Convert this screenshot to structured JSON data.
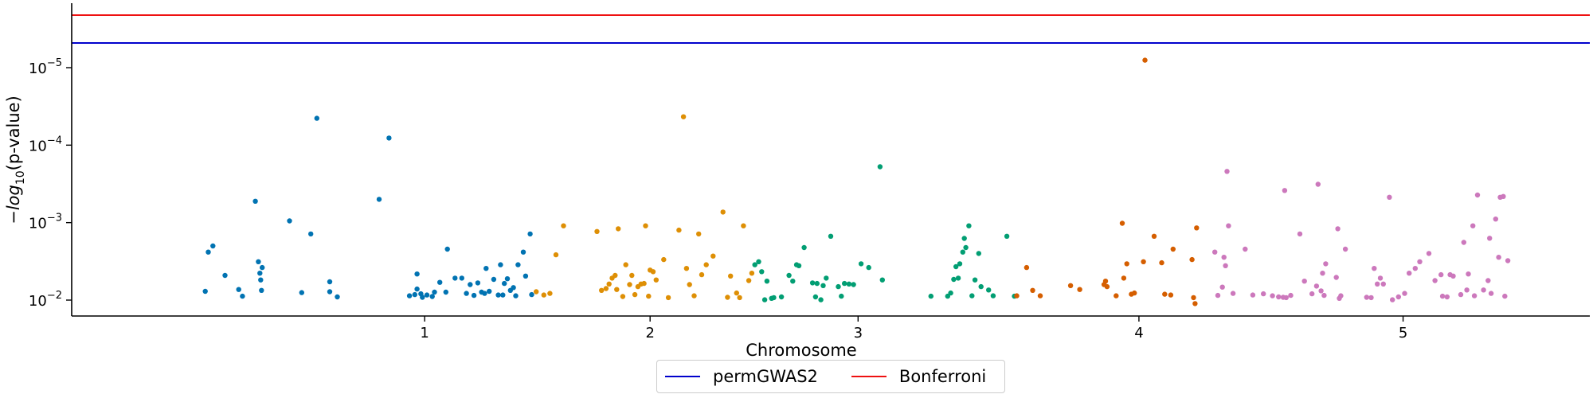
{
  "chart_data": {
    "type": "scatter",
    "title": "",
    "xlabel": "Chromosome",
    "ylabel_parts": [
      "−",
      "log",
      "10",
      "(p-value)"
    ],
    "y_scale": "log",
    "y_range_p": [
      0.0125,
      2.1e-06
    ],
    "y_ticks": [
      {
        "p": 1e-05,
        "base": "10",
        "exp": "−5"
      },
      {
        "p": 0.0001,
        "base": "10",
        "exp": "−4"
      },
      {
        "p": 0.001,
        "base": "10",
        "exp": "−3"
      },
      {
        "p": 0.01,
        "base": "10",
        "exp": "−2"
      }
    ],
    "x_range": [
      0,
      2000
    ],
    "chromosomes": [
      {
        "label": "1",
        "tick": 465
      },
      {
        "label": "2",
        "tick": 762
      },
      {
        "label": "3",
        "tick": 1036
      },
      {
        "label": "4",
        "tick": 1406
      },
      {
        "label": "5",
        "tick": 1754
      }
    ],
    "thresholds": [
      {
        "name": "permGWAS2",
        "p": 4.8e-06,
        "color": "#0000cc"
      },
      {
        "name": "Bonferroni",
        "p": 2.1e-06,
        "color": "#ee1111"
      }
    ],
    "legend": {
      "position": "bottom-center",
      "entries": [
        "permGWAS2",
        "Bonferroni"
      ]
    },
    "grid": false,
    "series": [
      {
        "chromosome": "1",
        "color": "#0173b2",
        "points": [
          [
            176,
            0.0077
          ],
          [
            180,
            0.0024
          ],
          [
            186,
            0.002
          ],
          [
            202,
            0.0048
          ],
          [
            220,
            0.0073
          ],
          [
            225,
            0.0089
          ],
          [
            242,
            0.00053
          ],
          [
            246,
            0.0032
          ],
          [
            248,
            0.0045
          ],
          [
            249,
            0.0055
          ],
          [
            250,
            0.0075
          ],
          [
            251,
            0.0038
          ],
          [
            287,
            0.00095
          ],
          [
            303,
            0.008
          ],
          [
            315,
            0.0014
          ],
          [
            323,
            4.5e-05
          ],
          [
            340,
            0.0058
          ],
          [
            340,
            0.0078
          ],
          [
            350,
            0.0091
          ],
          [
            405,
            0.0005
          ],
          [
            418,
            8.1e-05
          ],
          [
            445,
            0.0088
          ],
          [
            452,
            0.0085
          ],
          [
            455,
            0.0072
          ],
          [
            455,
            0.0046
          ],
          [
            460,
            0.0083
          ],
          [
            462,
            0.0092
          ],
          [
            468,
            0.0086
          ],
          [
            475,
            0.009
          ],
          [
            478,
            0.0079
          ],
          [
            485,
            0.0059
          ],
          [
            493,
            0.0079
          ],
          [
            495,
            0.0022
          ],
          [
            505,
            0.0052
          ],
          [
            514,
            0.0052
          ],
          [
            520,
            0.0082
          ],
          [
            525,
            0.0063
          ],
          [
            530,
            0.0087
          ],
          [
            535,
            0.006
          ],
          [
            540,
            0.0079
          ],
          [
            544,
            0.0082
          ],
          [
            546,
            0.0039
          ],
          [
            550,
            0.0077
          ],
          [
            556,
            0.0054
          ],
          [
            562,
            0.0086
          ],
          [
            565,
            0.0035
          ],
          [
            568,
            0.0086
          ],
          [
            570,
            0.0061
          ],
          [
            574,
            0.0053
          ],
          [
            578,
            0.0075
          ],
          [
            582,
            0.0069
          ],
          [
            585,
            0.0088
          ],
          [
            588,
            0.0035
          ],
          [
            595,
            0.0024
          ],
          [
            598,
            0.0049
          ],
          [
            604,
            0.0014
          ],
          [
            606,
            0.0085
          ]
        ]
      },
      {
        "chromosome": "2",
        "color": "#de8f05",
        "points": [
          [
            612,
            0.0078
          ],
          [
            622,
            0.0086
          ],
          [
            630,
            0.0082
          ],
          [
            638,
            0.0026
          ],
          [
            648,
            0.0011
          ],
          [
            692,
            0.0013
          ],
          [
            698,
            0.0075
          ],
          [
            704,
            0.0071
          ],
          [
            708,
            0.0062
          ],
          [
            712,
            0.0052
          ],
          [
            716,
            0.0048
          ],
          [
            718,
            0.0073
          ],
          [
            720,
            0.0012
          ],
          [
            726,
            0.009
          ],
          [
            730,
            0.0035
          ],
          [
            735,
            0.0063
          ],
          [
            738,
            0.0048
          ],
          [
            742,
            0.0085
          ],
          [
            746,
            0.0067
          ],
          [
            750,
            0.0062
          ],
          [
            754,
            0.0061
          ],
          [
            756,
            0.0011
          ],
          [
            760,
            0.0089
          ],
          [
            762,
            0.0041
          ],
          [
            766,
            0.0043
          ],
          [
            770,
            0.0055
          ],
          [
            780,
            0.003
          ],
          [
            786,
            0.0093
          ],
          [
            800,
            0.00125
          ],
          [
            806,
            4.3e-05
          ],
          [
            810,
            0.0039
          ],
          [
            814,
            0.0063
          ],
          [
            820,
            0.0088
          ],
          [
            826,
            0.0014
          ],
          [
            830,
            0.0047
          ],
          [
            836,
            0.0035
          ],
          [
            845,
            0.0027
          ],
          [
            858,
            0.00073
          ],
          [
            864,
            0.0092
          ],
          [
            868,
            0.0049
          ],
          [
            876,
            0.0081
          ],
          [
            880,
            0.0093
          ],
          [
            885,
            0.0011
          ],
          [
            892,
            0.0056
          ],
          [
            896,
            0.0045
          ]
        ]
      },
      {
        "chromosome": "3",
        "color": "#029e73",
        "points": [
          [
            900,
            0.0035
          ],
          [
            905,
            0.0032
          ],
          [
            909,
            0.0043
          ],
          [
            913,
            0.0099
          ],
          [
            916,
            0.0057
          ],
          [
            922,
            0.0095
          ],
          [
            925,
            0.0093
          ],
          [
            935,
            0.0091
          ],
          [
            945,
            0.0048
          ],
          [
            950,
            0.0057
          ],
          [
            955,
            0.0035
          ],
          [
            958,
            0.0036
          ],
          [
            965,
            0.0021
          ],
          [
            976,
            0.006
          ],
          [
            980,
            0.0091
          ],
          [
            982,
            0.0061
          ],
          [
            987,
            0.0099
          ],
          [
            990,
            0.0065
          ],
          [
            994,
            0.0052
          ],
          [
            1000,
            0.0015
          ],
          [
            1010,
            0.0067
          ],
          [
            1014,
            0.0089
          ],
          [
            1018,
            0.0061
          ],
          [
            1024,
            0.0062
          ],
          [
            1030,
            0.0063
          ],
          [
            1040,
            0.0034
          ],
          [
            1050,
            0.0038
          ],
          [
            1065,
            0.00019
          ],
          [
            1068,
            0.0055
          ],
          [
            1132,
            0.0089
          ],
          [
            1154,
            0.0089
          ],
          [
            1158,
            0.0081
          ],
          [
            1162,
            0.0054
          ],
          [
            1165,
            0.0037
          ],
          [
            1168,
            0.0052
          ],
          [
            1170,
            0.0034
          ],
          [
            1174,
            0.0024
          ],
          [
            1176,
            0.0016
          ],
          [
            1178,
            0.0021
          ],
          [
            1182,
            0.0011
          ],
          [
            1186,
            0.0088
          ],
          [
            1190,
            0.0055
          ],
          [
            1195,
            0.0025
          ],
          [
            1198,
            0.0067
          ],
          [
            1208,
            0.0074
          ],
          [
            1214,
            0.0088
          ],
          [
            1232,
            0.0015
          ],
          [
            1242,
            0.0089
          ]
        ]
      },
      {
        "chromosome": "4",
        "color": "#d55e00",
        "points": [
          [
            1245,
            0.0088
          ],
          [
            1258,
            0.0038
          ],
          [
            1266,
            0.0075
          ],
          [
            1276,
            0.0088
          ],
          [
            1316,
            0.0065
          ],
          [
            1328,
            0.0073
          ],
          [
            1360,
            0.0063
          ],
          [
            1362,
            0.0057
          ],
          [
            1364,
            0.0067
          ],
          [
            1376,
            0.0088
          ],
          [
            1384,
            0.00102
          ],
          [
            1386,
            0.0052
          ],
          [
            1390,
            0.0034
          ],
          [
            1396,
            0.0084
          ],
          [
            1400,
            0.0081
          ],
          [
            1412,
            0.0032
          ],
          [
            1414,
            8e-06
          ],
          [
            1426,
            0.0015
          ],
          [
            1436,
            0.0033
          ],
          [
            1440,
            0.0084
          ],
          [
            1448,
            0.0086
          ],
          [
            1451,
            0.0022
          ],
          [
            1476,
            0.003
          ],
          [
            1478,
            0.0093
          ],
          [
            1480,
            0.0111
          ],
          [
            1482,
            0.00117
          ]
        ]
      },
      {
        "chromosome": "5",
        "color": "#cc78bc",
        "points": [
          [
            1506,
            0.0024
          ],
          [
            1510,
            0.0087
          ],
          [
            1516,
            0.0068
          ],
          [
            1518,
            0.0028
          ],
          [
            1520,
            0.0036
          ],
          [
            1522,
            0.000218
          ],
          [
            1524,
            0.0011
          ],
          [
            1530,
            0.0082
          ],
          [
            1546,
            0.0022
          ],
          [
            1556,
            0.0086
          ],
          [
            1570,
            0.0083
          ],
          [
            1582,
            0.0088
          ],
          [
            1590,
            0.0091
          ],
          [
            1596,
            0.0092
          ],
          [
            1598,
            0.000385
          ],
          [
            1600,
            0.0093
          ],
          [
            1606,
            0.0087
          ],
          [
            1618,
            0.0014
          ],
          [
            1624,
            0.0057
          ],
          [
            1634,
            0.0083
          ],
          [
            1640,
            0.0066
          ],
          [
            1642,
            0.00032
          ],
          [
            1646,
            0.0076
          ],
          [
            1648,
            0.0045
          ],
          [
            1650,
            0.0087
          ],
          [
            1652,
            0.0034
          ],
          [
            1666,
            0.0051
          ],
          [
            1668,
            0.0012
          ],
          [
            1670,
            0.0095
          ],
          [
            1672,
            0.0088
          ],
          [
            1678,
            0.0022
          ],
          [
            1706,
            0.0092
          ],
          [
            1712,
            0.0093
          ],
          [
            1716,
            0.0039
          ],
          [
            1720,
            0.0062
          ],
          [
            1724,
            0.0052
          ],
          [
            1728,
            0.0062
          ],
          [
            1736,
            0.00047
          ],
          [
            1740,
            0.0099
          ],
          [
            1748,
            0.0091
          ],
          [
            1756,
            0.0082
          ],
          [
            1762,
            0.0045
          ],
          [
            1770,
            0.0039
          ],
          [
            1776,
            0.0032
          ],
          [
            1788,
            0.0025
          ],
          [
            1796,
            0.0056
          ],
          [
            1804,
            0.0047
          ],
          [
            1806,
            0.0089
          ],
          [
            1812,
            0.0091
          ],
          [
            1816,
            0.0047
          ],
          [
            1820,
            0.0049
          ],
          [
            1830,
            0.0085
          ],
          [
            1834,
            0.0018
          ],
          [
            1838,
            0.0074
          ],
          [
            1840,
            0.0046
          ],
          [
            1846,
            0.0011
          ],
          [
            1848,
            0.0088
          ],
          [
            1852,
            0.00044
          ],
          [
            1860,
            0.0074
          ],
          [
            1866,
            0.0056
          ],
          [
            1868,
            0.00159
          ],
          [
            1870,
            0.0082
          ],
          [
            1876,
            0.0009
          ],
          [
            1880,
            0.0028
          ],
          [
            1882,
            0.00047
          ],
          [
            1886,
            0.00046
          ],
          [
            1888,
            0.0089
          ],
          [
            1892,
            0.0031
          ]
        ]
      }
    ]
  }
}
